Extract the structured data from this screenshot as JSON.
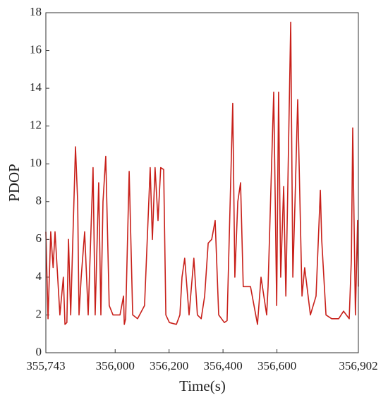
{
  "chart_data": {
    "type": "line",
    "x_label": "Time(s)",
    "y_label": "PDOP",
    "x": [
      355743,
      355751,
      355761,
      355770,
      355777,
      355795,
      355808,
      355814,
      355821,
      355827,
      355835,
      355853,
      355861,
      355866,
      355874,
      355887,
      355900,
      355918,
      355926,
      355939,
      355947,
      355955,
      355965,
      355978,
      355992,
      356018,
      356031,
      356034,
      356039,
      356052,
      356065,
      356083,
      356109,
      356130,
      356138,
      356148,
      356159,
      356169,
      356180,
      356188,
      356201,
      356227,
      356240,
      356248,
      356258,
      356274,
      356292,
      356305,
      356319,
      356332,
      356345,
      356358,
      356371,
      356384,
      356405,
      356415,
      356436,
      356444,
      356455,
      356465,
      356475,
      356502,
      356528,
      356541,
      356562,
      356567,
      356588,
      356599,
      356606,
      356614,
      356625,
      356633,
      356640,
      356651,
      356659,
      356667,
      356677,
      356693,
      356703,
      356724,
      356745,
      356761,
      356766,
      356782,
      356803,
      356829,
      356847,
      356868,
      356876,
      356881,
      356891,
      356899,
      356902
    ],
    "series": [
      {
        "name": "PDOP",
        "color": "#c8201a",
        "values": [
          6.4,
          1.8,
          6.4,
          4.5,
          6.4,
          2.0,
          4.0,
          1.5,
          1.6,
          6.0,
          2.0,
          10.9,
          8.0,
          2.0,
          4.0,
          6.4,
          2.0,
          9.8,
          2.0,
          9.0,
          2.0,
          8.0,
          10.4,
          2.5,
          2.0,
          2.0,
          3.0,
          1.5,
          1.8,
          9.6,
          2.0,
          1.8,
          2.5,
          9.8,
          6.0,
          9.8,
          7.0,
          9.8,
          9.7,
          2.0,
          1.6,
          1.5,
          2.0,
          4.0,
          5.0,
          2.0,
          5.0,
          2.0,
          1.8,
          3.0,
          5.8,
          6.0,
          7.0,
          2.0,
          1.6,
          1.7,
          13.2,
          4.0,
          8.0,
          9.0,
          3.5,
          3.5,
          1.5,
          4.0,
          2.0,
          3.5,
          13.8,
          2.5,
          13.8,
          4.0,
          8.8,
          3.0,
          8.6,
          17.5,
          4.0,
          8.0,
          13.4,
          3.0,
          4.5,
          2.0,
          3.0,
          8.6,
          6.0,
          2.0,
          1.8,
          1.8,
          2.2,
          1.8,
          5.0,
          11.9,
          2.0,
          7.0,
          3.5
        ]
      }
    ],
    "xlim": [
      355743,
      356902
    ],
    "xticks": [
      {
        "value": 355743,
        "label": "355,743"
      },
      {
        "value": 356000,
        "label": "356,000"
      },
      {
        "value": 356200,
        "label": "356,200"
      },
      {
        "value": 356400,
        "label": "356,400"
      },
      {
        "value": 356600,
        "label": "356,600"
      },
      {
        "value": 356902,
        "label": "356,902"
      }
    ],
    "ylim": [
      0,
      18
    ],
    "yticks": [
      0,
      2,
      4,
      6,
      8,
      10,
      12,
      14,
      16,
      18
    ],
    "grid": false
  }
}
